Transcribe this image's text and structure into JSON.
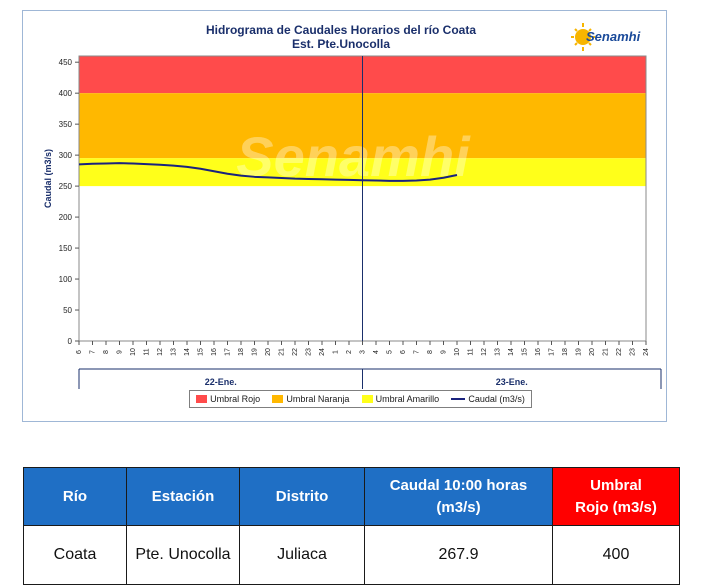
{
  "chart_data": {
    "type": "line",
    "title_line1": "Hidrograma de Caudales Horarios del río Coata",
    "title_line2": "Est. Pte.Unocolla",
    "ylabel": "Caudal  (m3/s)",
    "ylim": [
      0,
      460
    ],
    "yticks": [
      0,
      50,
      100,
      150,
      200,
      250,
      300,
      350,
      400,
      450
    ],
    "xtick_labels": [
      "6",
      "7",
      "8",
      "9",
      "10",
      "11",
      "12",
      "13",
      "14",
      "15",
      "16",
      "17",
      "18",
      "19",
      "20",
      "21",
      "22",
      "23",
      "24",
      "1",
      "2",
      "3",
      "4",
      "5",
      "6",
      "7",
      "8",
      "9",
      "10",
      "11",
      "12",
      "13",
      "14",
      "15",
      "16",
      "17",
      "18",
      "19",
      "20",
      "21",
      "22",
      "23",
      "24"
    ],
    "date_labels": [
      "22-Ene.",
      "23-Ene."
    ],
    "thresholds": [
      {
        "name": "Umbral Rojo",
        "from": 400,
        "to": 460,
        "color": "#ff4b4b"
      },
      {
        "name": "Umbral Naranja",
        "from": 295,
        "to": 400,
        "color": "#ffb800"
      },
      {
        "name": "Umbral Amarillo",
        "from": 250,
        "to": 295,
        "color": "#ffff1a"
      }
    ],
    "series": [
      {
        "name": "Caudal (m3/s)",
        "color": "#1a237e",
        "values": [
          285,
          286,
          286.5,
          287,
          286.5,
          285.5,
          284.5,
          283,
          281,
          278,
          274,
          270,
          267,
          265,
          264,
          263,
          262,
          261.5,
          261,
          260.5,
          260,
          259.5,
          259,
          258.5,
          258.5,
          259,
          260.5,
          263.5,
          267.9
        ]
      }
    ],
    "watermark": "Senamhi"
  },
  "legend": {
    "rojo": "Umbral Rojo",
    "naranja": "Umbral Naranja",
    "amarillo": "Umbral Amarillo",
    "caudal": "Caudal (m3/s)"
  },
  "logo_text": "Senamhi",
  "table": {
    "headers": {
      "rio": "Río",
      "estacion": "Estación",
      "distrito": "Distrito",
      "caudal_line1": "Caudal  10:00 horas",
      "caudal_line2": "(m3/s)",
      "umbral_line1": "Umbral",
      "umbral_line2": "Rojo (m3/s)"
    },
    "row": {
      "rio": "Coata",
      "estacion": "Pte. Unocolla",
      "distrito": "Juliaca",
      "caudal": "267.9",
      "umbral": "400"
    }
  }
}
